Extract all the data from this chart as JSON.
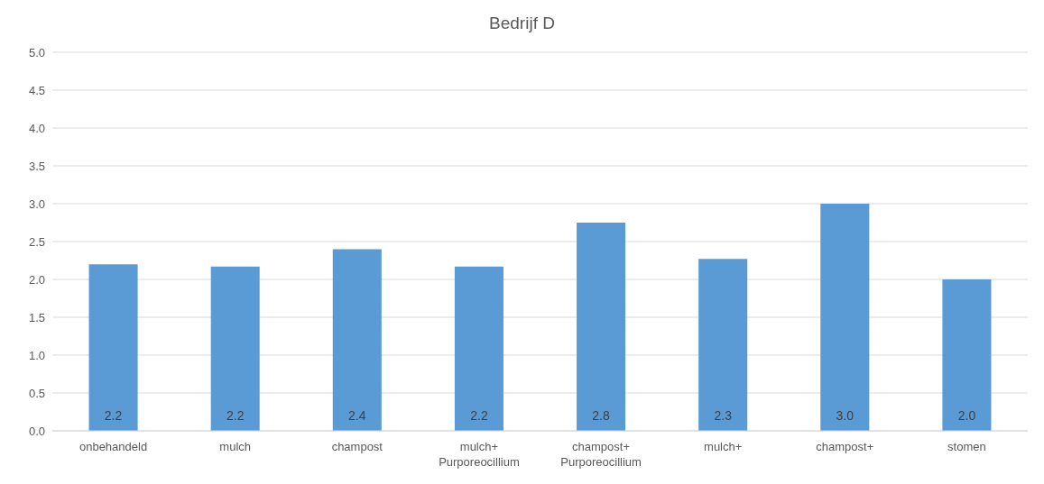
{
  "chart_data": {
    "type": "bar",
    "title": "Bedrijf D",
    "categories": [
      "onbehandeld",
      "mulch",
      "champost",
      "mulch+\nPurporeocillium",
      "champost+\nPurporeocillium",
      "mulch+",
      "champost+",
      "stomen"
    ],
    "values": [
      2.2,
      2.17,
      2.4,
      2.17,
      2.75,
      2.27,
      3.0,
      2.0
    ],
    "value_labels": [
      "2.2",
      "2.2",
      "2.4",
      "2.2",
      "2.8",
      "2.3",
      "3.0",
      "2.0"
    ],
    "color": "#5b9bd5",
    "ylim": [
      0,
      5
    ],
    "yticks": [
      {
        "value": 0,
        "label": "0.0"
      },
      {
        "value": 0.5,
        "label": "0.5"
      },
      {
        "value": 1,
        "label": "1.0"
      },
      {
        "value": 1.5,
        "label": "1.5"
      },
      {
        "value": 2,
        "label": "2.0"
      },
      {
        "value": 2.5,
        "label": "2.5"
      },
      {
        "value": 3,
        "label": "3.0"
      },
      {
        "value": 3.5,
        "label": "3.5"
      },
      {
        "value": 4,
        "label": "4.0"
      },
      {
        "value": 4.5,
        "label": "4.5"
      },
      {
        "value": 5,
        "label": "5.0"
      }
    ],
    "grid": "y"
  }
}
